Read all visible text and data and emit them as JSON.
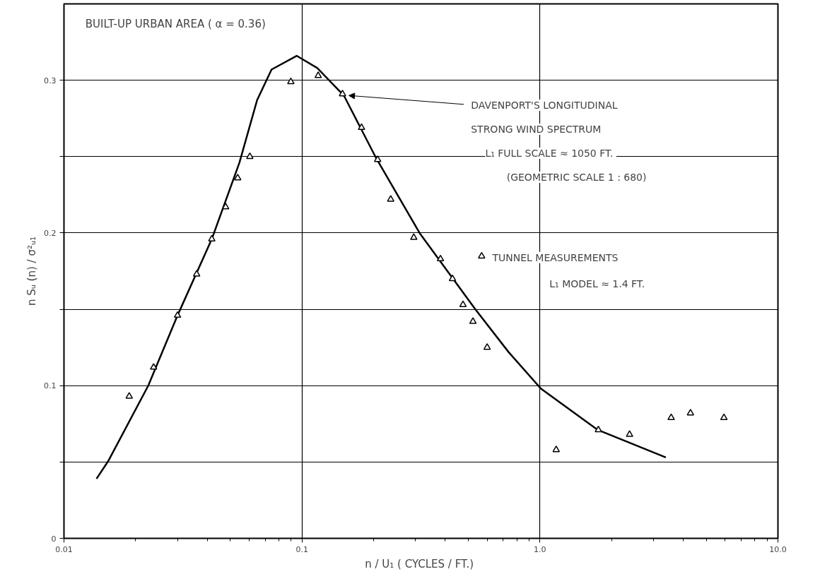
{
  "chart_data": {
    "type": "scatter",
    "title": "BUILT-UP URBAN AREA ( α = 0.36)",
    "xlabel": "n / U₁  ( CYCLES / FT.)",
    "ylabel": "n Sᵤ (n) / σ²ᵤ₁",
    "log": "x",
    "xlim": [
      0.01,
      10
    ],
    "ylim": [
      0,
      0.35
    ],
    "xticks": [
      {
        "value": 0.01,
        "label": "0.01"
      },
      {
        "value": 0.1,
        "label": "0.1"
      },
      {
        "value": 1,
        "label": "1.0"
      },
      {
        "value": 10,
        "label": "10.0"
      }
    ],
    "yticks": [
      0,
      {
        "value": 0.05,
        "label": null
      },
      0.1,
      {
        "value": 0.15,
        "label": null
      },
      0.2,
      {
        "value": 0.25,
        "label": null
      },
      0.3
    ],
    "grid": true,
    "legend": "right",
    "annotations": [
      "L₁  FULL SCALE ≈ 1050 FT.",
      "(GEOMETRIC SCALE 1 : 680)",
      "L₁  MODEL ≈ 1.4 FT."
    ],
    "series": [
      {
        "name": "DAVENPORT'S LONGITUDINAL STRONG WIND SPECTRUM",
        "type": "line",
        "color": "#000000",
        "line_style": "solid",
        "marker": "none",
        "x": [
          0.0137,
          0.0154,
          0.0226,
          0.03,
          0.0418,
          0.0546,
          0.0648,
          0.0745,
          0.095,
          0.116,
          0.15,
          0.205,
          0.312,
          0.535,
          0.738,
          1.01,
          1.75,
          3.38
        ],
        "values": [
          0.039,
          0.051,
          0.1,
          0.146,
          0.196,
          0.246,
          0.287,
          0.307,
          0.316,
          0.308,
          0.29,
          0.249,
          0.2,
          0.15,
          0.122,
          0.098,
          0.071,
          0.053
        ]
      },
      {
        "name": "TUNNEL MEASUREMENTS",
        "color": "#000000",
        "marker": "triangle",
        "x": [
          0.0188,
          0.0238,
          0.03,
          0.0361,
          0.0418,
          0.0478,
          0.0537,
          0.0604,
          0.0898,
          0.117,
          0.148,
          0.178,
          0.208,
          0.236,
          0.295,
          0.382,
          0.429,
          0.475,
          0.523,
          0.6,
          1.17,
          1.76,
          2.38,
          3.56,
          4.29,
          5.93
        ],
        "values": [
          0.093,
          0.112,
          0.146,
          0.173,
          0.196,
          0.217,
          0.236,
          0.25,
          0.299,
          0.303,
          0.291,
          0.269,
          0.248,
          0.222,
          0.197,
          0.183,
          0.17,
          0.153,
          0.142,
          0.125,
          0.058,
          0.071,
          0.068,
          0.079,
          0.082,
          0.079
        ]
      }
    ]
  }
}
